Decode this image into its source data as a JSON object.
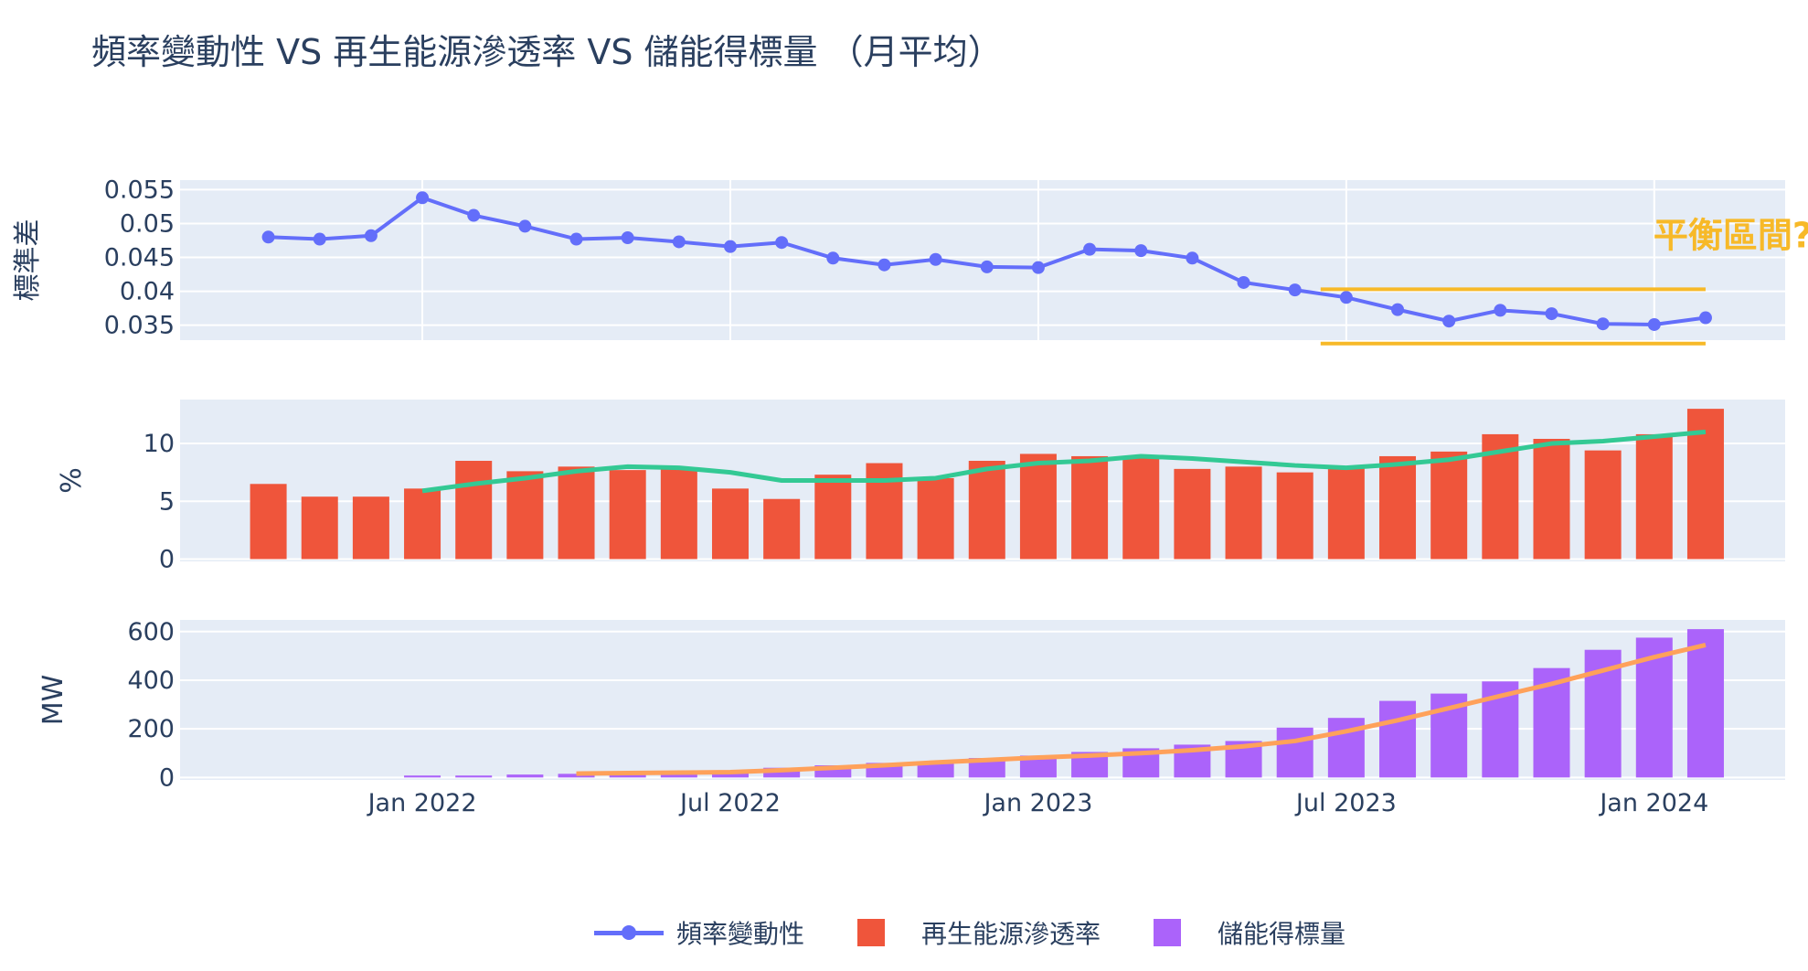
{
  "title": "頻率變動性 VS 再生能源滲透率 VS 儲能得標量 （月平均）",
  "colors": {
    "frequency": "#636efa",
    "renewable": "#ef553b",
    "renewable_trend": "#33c994",
    "storage": "#ab63fa",
    "storage_trend": "#ffa15a",
    "annotation": "#f7b928",
    "plot_bg": "#e5ecf6"
  },
  "legend": [
    {
      "label": "頻率變動性",
      "symbol": "line-marker"
    },
    {
      "label": "再生能源滲透率",
      "symbol": "square"
    },
    {
      "label": "儲能得標量",
      "symbol": "square"
    }
  ],
  "chart_data": [
    {
      "type": "line",
      "ylabel": "標準差",
      "x": [
        "2021-10",
        "2021-11",
        "2021-12",
        "2022-01",
        "2022-02",
        "2022-03",
        "2022-04",
        "2022-05",
        "2022-06",
        "2022-07",
        "2022-08",
        "2022-09",
        "2022-10",
        "2022-11",
        "2022-12",
        "2023-01",
        "2023-02",
        "2023-03",
        "2023-04",
        "2023-05",
        "2023-06",
        "2023-07",
        "2023-08",
        "2023-09",
        "2023-10",
        "2023-11",
        "2023-12",
        "2024-01",
        "2024-02"
      ],
      "series": [
        {
          "name": "頻率變動性",
          "values": [
            0.048,
            0.0477,
            0.0482,
            0.0538,
            0.0512,
            0.0496,
            0.0477,
            0.0479,
            0.0473,
            0.0466,
            0.0472,
            0.0449,
            0.0439,
            0.0447,
            0.0436,
            0.0435,
            0.0462,
            0.046,
            0.0449,
            0.0413,
            0.0402,
            0.0391,
            0.0373,
            0.0356,
            0.0372,
            0.0367,
            0.0352,
            0.0351,
            0.0361
          ]
        }
      ],
      "ylim": [
        0.0328,
        0.0564
      ],
      "yticks": [
        "0.035",
        "0.04",
        "0.045",
        "0.05",
        "0.055"
      ],
      "ytick_values": [
        0.035,
        0.04,
        0.045,
        0.05,
        0.055
      ],
      "annotation": {
        "text": "平衡區間?",
        "band": [
          0.0323,
          0.0403
        ],
        "x_range": [
          "2023-06-15",
          "2024-02"
        ]
      }
    },
    {
      "type": "bar",
      "ylabel": "%",
      "series": [
        {
          "name": "再生能源滲透率",
          "values": [
            6.5,
            5.4,
            5.4,
            6.1,
            8.5,
            7.6,
            8.0,
            7.7,
            7.8,
            6.1,
            5.2,
            7.3,
            8.3,
            7.0,
            8.5,
            9.1,
            8.9,
            8.8,
            7.8,
            8.0,
            7.5,
            7.9,
            8.9,
            9.3,
            10.8,
            10.4,
            9.4,
            10.8,
            13.0
          ]
        },
        {
          "type": "line",
          "start": "2022-01",
          "values": [
            5.9,
            6.5,
            7.0,
            7.6,
            8.0,
            7.9,
            7.5,
            6.8,
            6.8,
            6.8,
            7.0,
            7.8,
            8.3,
            8.5,
            8.9,
            8.7,
            8.4,
            8.1,
            7.9,
            8.2,
            8.6,
            9.3,
            10.0,
            10.2,
            10.6,
            11.0
          ]
        }
      ],
      "ylim": [
        -0.2,
        13.8
      ],
      "yticks": [
        "0",
        "5",
        "10"
      ],
      "ytick_values": [
        0,
        5,
        10
      ]
    },
    {
      "type": "bar",
      "ylabel": "MW",
      "series": [
        {
          "name": "儲能得標量",
          "values": [
            0,
            0,
            0,
            8,
            8,
            12,
            15,
            15,
            15,
            18,
            40,
            50,
            60,
            65,
            80,
            90,
            105,
            120,
            135,
            150,
            205,
            245,
            315,
            345,
            395,
            450,
            525,
            575,
            610
          ]
        },
        {
          "type": "line",
          "start": "2022-04",
          "values": [
            16,
            18,
            20,
            22,
            30,
            40,
            50,
            62,
            72,
            82,
            90,
            100,
            112,
            128,
            150,
            190,
            235,
            285,
            335,
            385,
            440,
            495,
            545
          ]
        }
      ],
      "ylim": [
        -10,
        648
      ],
      "yticks": [
        "0",
        "200",
        "400",
        "600"
      ],
      "ytick_values": [
        0,
        200,
        400,
        600
      ],
      "xticks": [
        "Jan 2022",
        "Jul 2022",
        "Jan 2023",
        "Jul 2023",
        "Jan 2024"
      ],
      "xtick_months": [
        3,
        9,
        15,
        21,
        27
      ]
    }
  ]
}
